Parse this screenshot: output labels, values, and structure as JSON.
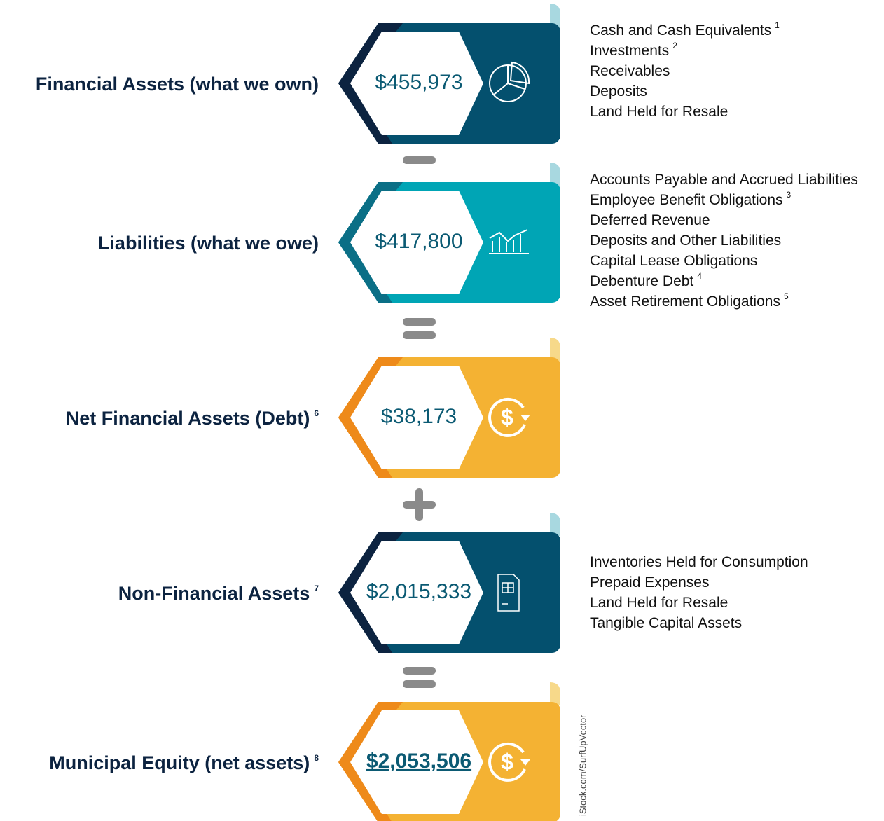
{
  "blocks": [
    {
      "label": "Financial Assets (what we own)",
      "value": "$455,973",
      "color": "#04506e",
      "accent": "#0c2340",
      "tab": "#a8d8e0",
      "icon": "pie",
      "items": [
        {
          "text": "Cash and Cash Equivalents",
          "note": "1"
        },
        {
          "text": "Investments",
          "note": "2"
        },
        {
          "text": "Receivables"
        },
        {
          "text": "Deposits"
        },
        {
          "text": "Land Held for Resale"
        }
      ]
    },
    {
      "label": "Liabilities (what we owe)",
      "value": "$417,800",
      "color": "#00a5b5",
      "accent": "#0b6f86",
      "tab": "#a8d8e0",
      "icon": "chart",
      "items": [
        {
          "text": "Accounts Payable and Accrued Liabilities"
        },
        {
          "text": "Employee Benefit Obligations",
          "note": "3"
        },
        {
          "text": "Deferred Revenue"
        },
        {
          "text": "Deposits and Other Liabilities"
        },
        {
          "text": "Capital Lease Obligations"
        },
        {
          "text": "Debenture Debt",
          "note": "4"
        },
        {
          "text": "Asset Retirement Obligations",
          "note": "5"
        }
      ]
    },
    {
      "label": "Net Financial Assets (Debt)",
      "note": "6",
      "value": "$38,173",
      "color": "#f4b233",
      "accent": "#ee8a1a",
      "tab": "#f7d98a",
      "icon": "dollar",
      "items": []
    },
    {
      "label": "Non-Financial Assets",
      "note": "7",
      "value": "$2,015,333",
      "color": "#04506e",
      "accent": "#0c2340",
      "tab": "#a8d8e0",
      "icon": "doc",
      "items": [
        {
          "text": "Inventories Held for Consumption"
        },
        {
          "text": "Prepaid Expenses"
        },
        {
          "text": "Land Held for Resale"
        },
        {
          "text": "Tangible Capital Assets"
        }
      ]
    },
    {
      "label": "Municipal Equity (net assets)",
      "note": "8",
      "value": "$2,053,506",
      "emphasis": true,
      "color": "#f4b233",
      "accent": "#ee8a1a",
      "tab": "#f7d98a",
      "icon": "dollar",
      "items": []
    }
  ],
  "credit": "iStock.com/SurfUpVector"
}
